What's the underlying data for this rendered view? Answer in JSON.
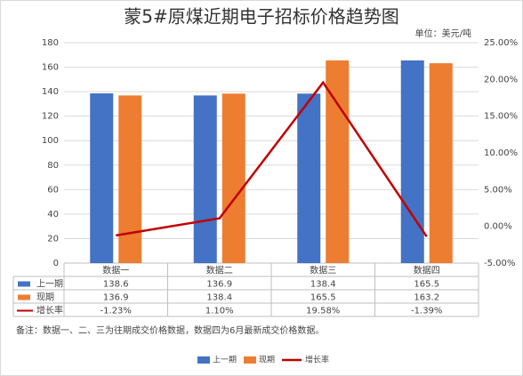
{
  "chart_data": {
    "type": "bar-line",
    "title": "蒙5#原煤近期电子招标价格趋势图",
    "subtitle": "单位：美元/吨",
    "note": "备注：数据一、二、三为往期成交价格数据，数据四为6月最新成交价格数据。",
    "categories": [
      "数据一",
      "数据二",
      "数据三",
      "数据四"
    ],
    "series": [
      {
        "name": "上一期",
        "color": "#4472c4",
        "values": [
          138.6,
          136.9,
          138.4,
          165.5
        ]
      },
      {
        "name": "现期",
        "color": "#ed7d31",
        "values": [
          136.9,
          138.4,
          165.5,
          163.2
        ]
      },
      {
        "name": "增长率",
        "color": "#c00000",
        "axis": "y2",
        "values": [
          -1.23,
          1.1,
          19.58,
          -1.39
        ],
        "value_labels": [
          "-1.23%",
          "1.10%",
          "19.58%",
          "-1.39%"
        ]
      }
    ],
    "ylim": [
      0,
      180
    ],
    "yticks": [
      0,
      20,
      40,
      60,
      80,
      100,
      120,
      140,
      160,
      180
    ],
    "y2lim": [
      -5,
      25
    ],
    "y2ticks": [
      {
        "value": -5,
        "label": "-5.00%"
      },
      {
        "value": 0,
        "label": "0.00%"
      },
      {
        "value": 5,
        "label": "5.00%"
      },
      {
        "value": 10,
        "label": "10.00%"
      },
      {
        "value": 15,
        "label": "15.00%"
      },
      {
        "value": 20,
        "label": "20.00%"
      },
      {
        "value": 25,
        "label": "25.00%"
      }
    ],
    "grid": true,
    "legend": "bottom"
  }
}
